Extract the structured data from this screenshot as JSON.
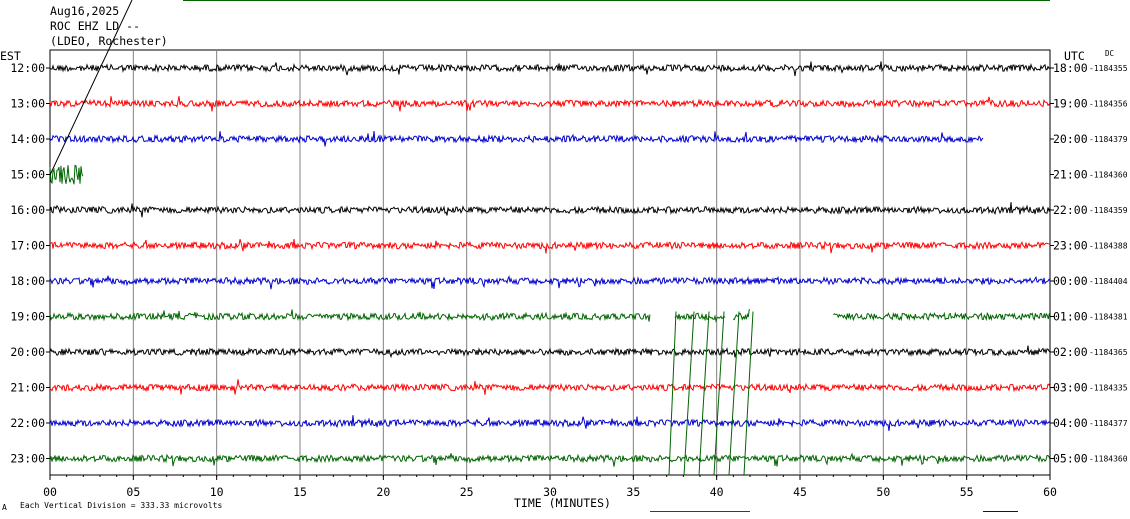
{
  "header": {
    "date": "Aug16,2025",
    "station": "ROC EHZ LD --",
    "network": "(LDEO, Rochester)",
    "left_tz": "EST",
    "right_tz": "UTC",
    "dc_label": "DC"
  },
  "footer": {
    "xlabel": "TIME (MINUTES)",
    "scale_note": "Each Vertical Division =  333.33 microvolts",
    "corner_mark": "A"
  },
  "colors": {
    "black": "#000000",
    "red": "#ff0000",
    "blue": "#0000cc",
    "green": "#006400",
    "grid": "#808080",
    "accent_line": "#006400",
    "footer_blue": "#0000cc"
  },
  "chart_data": {
    "type": "line",
    "xlim": [
      0,
      60
    ],
    "x_ticks": [
      "00",
      "05",
      "10",
      "15",
      "20",
      "25",
      "30",
      "35",
      "40",
      "45",
      "50",
      "55",
      "60"
    ],
    "rows": [
      {
        "est": "12:00",
        "utc": "18:00",
        "dc": "-1184355",
        "color": "black",
        "segments": [
          [
            0,
            60
          ]
        ]
      },
      {
        "est": "13:00",
        "utc": "19:00",
        "dc": "-1184356",
        "color": "red",
        "segments": [
          [
            0,
            60
          ]
        ]
      },
      {
        "est": "14:00",
        "utc": "20:00",
        "dc": "-1184379",
        "color": "blue",
        "segments": [
          [
            0,
            56
          ]
        ]
      },
      {
        "est": "15:00",
        "utc": "21:00",
        "dc": "-1184360",
        "color": "green",
        "segments": [
          [
            0,
            2
          ]
        ]
      },
      {
        "est": "16:00",
        "utc": "22:00",
        "dc": "-1184359",
        "color": "black",
        "segments": [
          [
            0,
            60
          ]
        ]
      },
      {
        "est": "17:00",
        "utc": "23:00",
        "dc": "-1184388",
        "color": "red",
        "segments": [
          [
            0,
            60
          ]
        ]
      },
      {
        "est": "18:00",
        "utc": "00:00",
        "dc": "-1184404",
        "color": "blue",
        "segments": [
          [
            0,
            60
          ]
        ]
      },
      {
        "est": "19:00",
        "utc": "01:00",
        "dc": "-1184381",
        "color": "green",
        "segments": [
          [
            0,
            36
          ],
          [
            37.5,
            40.5
          ],
          [
            41,
            42
          ],
          [
            47,
            60
          ]
        ]
      },
      {
        "est": "20:00",
        "utc": "02:00",
        "dc": "-1184365",
        "color": "black",
        "segments": [
          [
            0,
            60
          ]
        ]
      },
      {
        "est": "21:00",
        "utc": "03:00",
        "dc": "-1184335",
        "color": "red",
        "segments": [
          [
            0,
            60
          ]
        ]
      },
      {
        "est": "22:00",
        "utc": "04:00",
        "dc": "-1184377",
        "color": "blue",
        "segments": [
          [
            0,
            60
          ]
        ]
      },
      {
        "est": "23:00",
        "utc": "05:00",
        "dc": "-1184360",
        "color": "green",
        "segments": [
          [
            0,
            60
          ]
        ]
      }
    ]
  }
}
